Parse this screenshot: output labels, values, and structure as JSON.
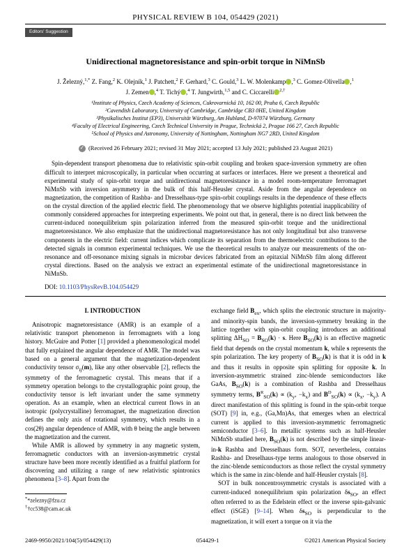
{
  "journal_header": "PHYSICAL REVIEW B 104, 054429 (2021)",
  "badge": "Editors' Suggestion",
  "title": "Unidirectional magnetoresistance and spin-orbit torque in NiMnSb",
  "authors_line1": "J. Železný,¹·* Z. Fang,² K. Olejník,¹ J. Patchett,² F. Gerhard,³ C. Gould,³ L. W. Molenkamp ●,³ C. Gomez-Olivella ●,¹",
  "authors_line2": "J. Zemen ●,⁴ T. Tichý ●,⁴ T. Jungwirth,¹·⁵ and C. Ciccarelli ●²·†",
  "affiliations": [
    "¹Institute of Physics, Czech Academy of Sciences, Cukrovarnická 10, 162 00, Praha 6, Czech Republic",
    "²Cavendish Laboratory, University of Cambridge, Cambridge CB3 0HE, United Kingdom",
    "³Physikalisches Institut (EP3), Universität Würzburg, Am Hubland, D-97074 Würzburg, Germany",
    "⁴Faculty of Electrical Engineering, Czech Technical University in Prague, Technická 2, Prague 166 27, Czech Republic",
    "⁵School of Physics and Astronomy, University of Nottingham, Nottingham NG7 2RD, United Kingdom"
  ],
  "dates": "(Received 26 February 2021; revised 31 May 2021; accepted 13 July 2021; published 23 August 2021)",
  "abstract": "Spin-dependent transport phenomena due to relativistic spin-orbit coupling and broken space-inversion symmetry are often difficult to interpret microscopically, in particular when occurring at surfaces or interfaces. Here we present a theoretical and experimental study of spin-orbit torque and unidirectional magnetoresistance in a model room-temperature ferromagnet NiMnSb with inversion asymmetry in the bulk of this half-Heusler crystal. Aside from the angular dependence on magnetization, the competition of Rashba- and Dresselhaus-type spin-orbit couplings results in the dependence of these effects on the crystal direction of the applied electric field. The phenomenology that we observe highlights potential inapplicability of commonly considered approaches for interpreting experiments. We point out that, in general, there is no direct link between the current-induced nonequilibrium spin polarization inferred from the measured spin-orbit torque and the unidirectional magnetoresistance. We also emphasize that the unidirectional magnetoresistance has not only longitudinal but also transverse components in the electric field: current indices which complicate its separation from the thermoelectric contributions to the detected signals in common experimental techniques. We use the theoretical results to analyze our measurements of the on-resonance and off-resonance mixing signals in microbar devices fabricated from an epitaxial NiMnSb film along different crystal directions. Based on the analysis we extract an experimental estimate of the unidirectional magnetoresistance in NiMnSb.",
  "doi_label": "DOI:",
  "doi": "10.1103/PhysRevB.104.054429",
  "section1_heading": "I. INTRODUCTION",
  "col1_p1": "Anisotropic magnetoresistance (AMR) is an example of a relativistic transport phenomenon in ferromagnets with a long history. McGuire and Potter [1] provided a phenomenological model that fully explained the angular dependence of AMR. The model was based on a general argument that the magnetization-dependent conductivity tensor σᵢⱼ(m), like any other observable [2], reflects the symmetry of the ferromagnetic crystal. This means that if a symmetry operation belongs to the crystallographic point group, the conductivity tensor is left invariant under the same symmetry operation. As an example, when an electrical current flows in an isotropic (polycrystalline) ferromagnet, the magnetization direction defines the only axis of rotational symmetry, which results in a cos(2θ) angular dependence of AMR, with θ being the angle between the magnetization and the current.",
  "col1_p2": "While AMR is allowed by symmetry in any magnetic system, ferromagnetic conductors with an inversion-asymmetric crystal structure have been more recently identified as a fruitful platform for discovering and utilizing a range of new relativistic spintronics phenomena [3–8]. Apart from the",
  "col2_p1": "exchange field Bₑₓ, which splits the electronic structure in majority- and minority-spin bands, the inversion-symmetry breaking in the lattice together with spin-orbit coupling introduces an additional splitting ΔHₛₒ = Bₛₒ(k) · s. Here Bₛₒ(k) is an effective magnetic field that depends on the crystal momentum k, while s represents the spin polarization. The key property of Bₛₒ(k) is that it is odd in k and thus it results in opposite spin splitting for opposite k. In inversion-asymmetric strained zinc-blende semiconductors like GaAs, Bₛₒ(k) is a combination of Rashba and Dresselhaus symmetry terms, Bᴿₛₒ(k) ∝ (kᵧ, −kₓ) and Bᴰₛₒ(k) ∝ (kₓ, −kᵧ). A direct manifestation of this splitting is found in the spin-orbit torque (SOT) [9] in, e.g., (Ga,Mn)As, that emerges when an electrical current is applied to this inversion-asymmetric ferromagnetic semiconductor [3–6]. In metallic systems such as half-Heusler NiMnSb studied here, Bₛₒ(k) is not described by the simple linear-in-k Rashba and Dresselhaus form. SOT, nevertheless, contains Rashba- and Dreselhaus-type terms analogous to those observed in the zinc-blende semiconductors as those reflect the crystal symmetry which is the same in zinc-blende and half-Heusler crystals [8].",
  "col2_p2": "SOT in bulk noncentrosymmetric crystals is associated with a current-induced nonequilibrium spin polarization δsₛₒ, an effect often referred to as the Edelstein effect or the inverse spin-galvanic effect (iSGE) [9–14]. When δsₛₒ is perpendicular to the magnetization, it will exert a torque on it via the",
  "footnote1": "*zelezny@fzu.cz",
  "footnote2": "†cc538@cam.ac.uk",
  "footer_left": "2469-9950/2021/104(5)/054429(13)",
  "footer_center": "054429-1",
  "footer_right": "©2021 American Physical Society",
  "colors": {
    "link": "#2040aa",
    "badge_bg": "#4a4a4a",
    "orcid": "#a6ce39"
  }
}
